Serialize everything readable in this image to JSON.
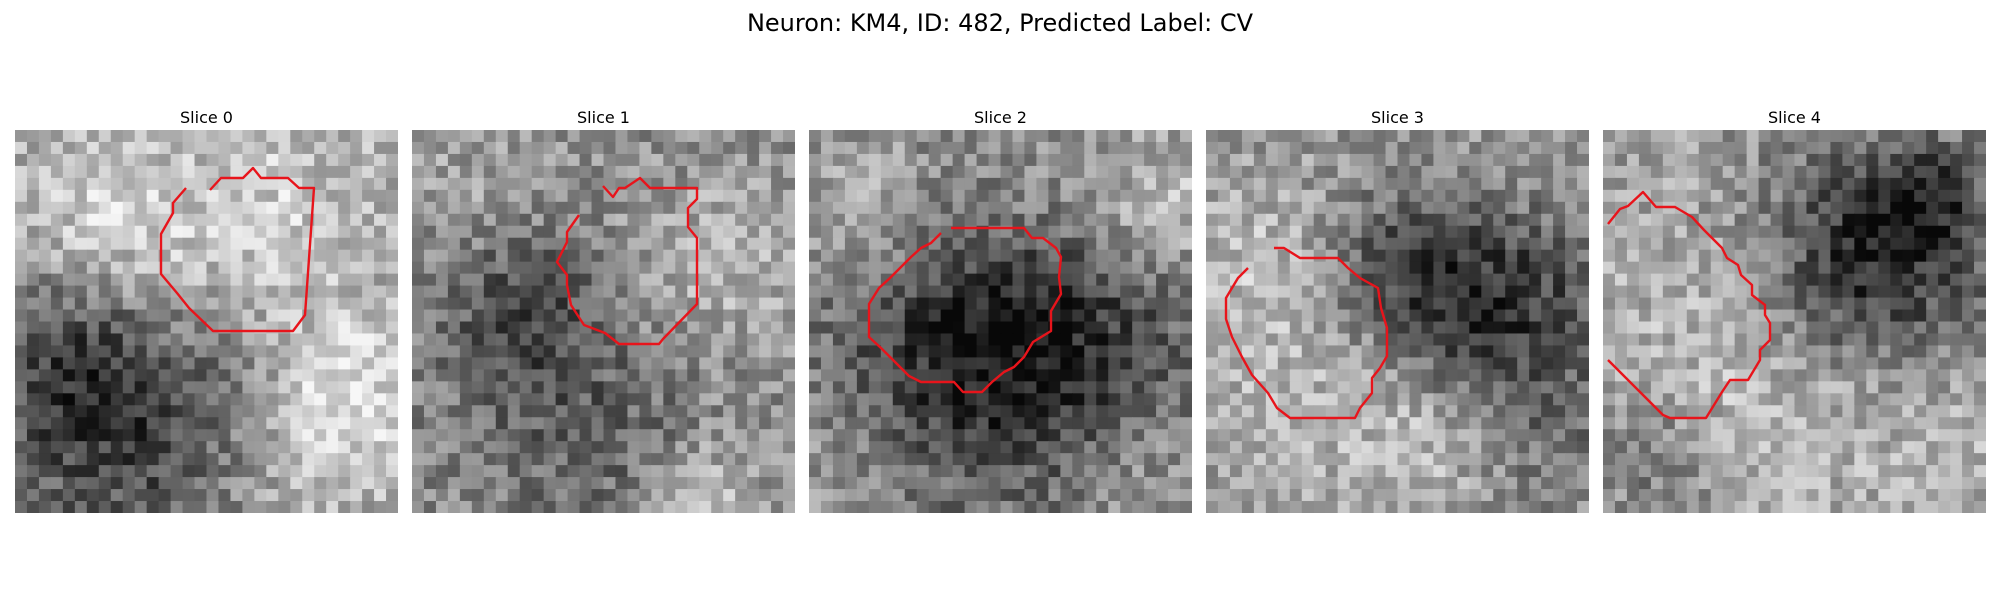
{
  "figure": {
    "title": "Neuron: KM4, ID: 482, Predicted Label: CV",
    "slices": [
      {
        "label": "Slice 0"
      },
      {
        "label": "Slice 1"
      },
      {
        "label": "Slice 2"
      },
      {
        "label": "Slice 3"
      },
      {
        "label": "Slice 4"
      }
    ]
  },
  "colors": {
    "contour": "#e8141b",
    "background": "#ffffff"
  }
}
